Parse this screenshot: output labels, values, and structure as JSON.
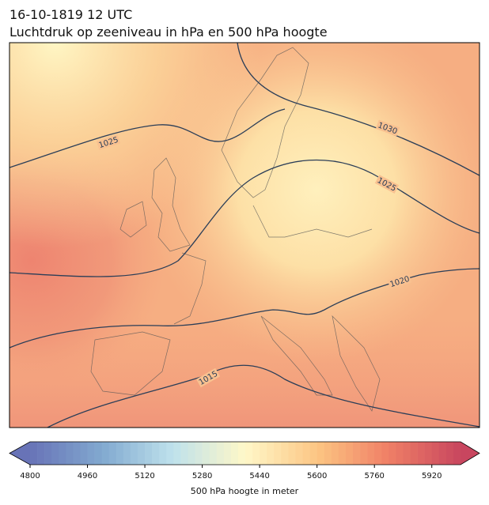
{
  "title": [
    "16-10-1819 12 UTC",
    "Luchtdruk op zeeniveau in hPa en 500 hPa hoogte"
  ],
  "isobar_labels": [
    1025,
    1030,
    1025,
    1020,
    1015
  ],
  "colorbar": {
    "label": "500 hPa hoogte in meter",
    "range": [
      4800,
      6000
    ],
    "step": 20,
    "ticks": [
      4800,
      4960,
      5120,
      5280,
      5440,
      5600,
      5760,
      5920
    ]
  }
}
